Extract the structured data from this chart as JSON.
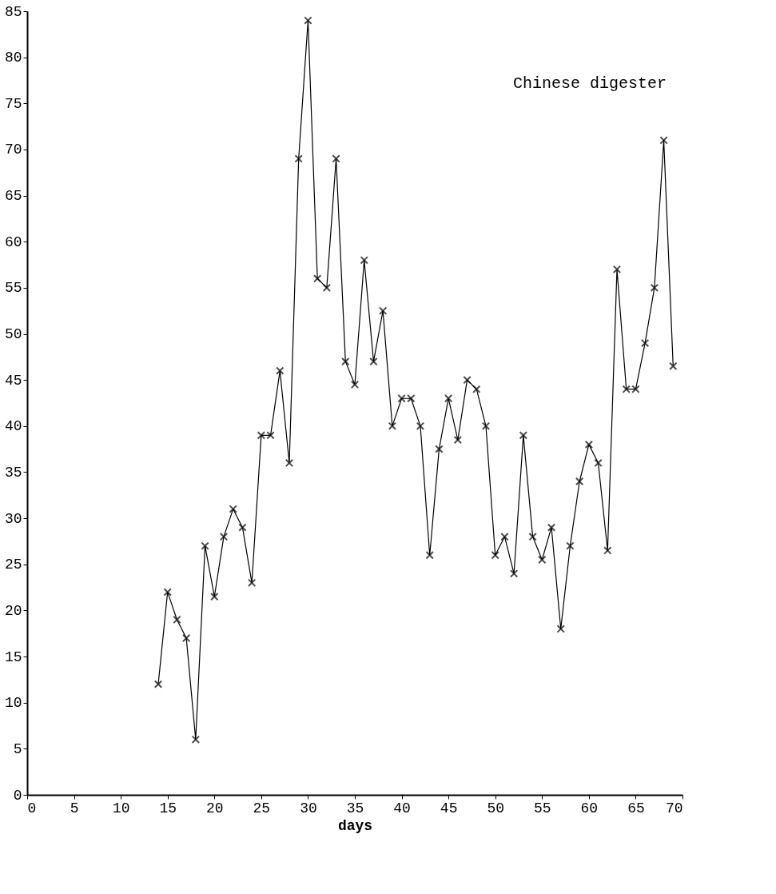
{
  "chart_data": {
    "type": "line",
    "xlabel": "days",
    "annotations": [
      "Chinese digester"
    ],
    "x": [
      14,
      15,
      16,
      17,
      18,
      19,
      20,
      21,
      22,
      23,
      24,
      25,
      26,
      27,
      28,
      29,
      30,
      31,
      32,
      33,
      34,
      35,
      36,
      37,
      38,
      39,
      40,
      41,
      42,
      43,
      44,
      45,
      46,
      47,
      48,
      49,
      50,
      51,
      52,
      53,
      54,
      55,
      56,
      57,
      58,
      59,
      60,
      61,
      62,
      63,
      64,
      65,
      66,
      67,
      68,
      69
    ],
    "series": [
      {
        "color": "#000000",
        "values": [
          12,
          22,
          19,
          17,
          6,
          27,
          21.5,
          28,
          31,
          29,
          23,
          39,
          39,
          46,
          36,
          69,
          84,
          56,
          55,
          69,
          47,
          44.5,
          58,
          47,
          52.5,
          40,
          43,
          43,
          40,
          26,
          37.5,
          43,
          38.5,
          45,
          44,
          40,
          26,
          28,
          24,
          39,
          28,
          25.5,
          29,
          18,
          27,
          34,
          38,
          36,
          26.5,
          57,
          44,
          44,
          49,
          55,
          71,
          46.5
        ]
      }
    ],
    "xlim": [
      0,
      70
    ],
    "xticks": [
      0,
      5,
      10,
      15,
      20,
      25,
      30,
      35,
      40,
      45,
      50,
      55,
      60,
      65,
      70
    ],
    "ylim": [
      0,
      85
    ],
    "yticks": [
      0,
      5,
      10,
      15,
      20,
      25,
      30,
      35,
      40,
      45,
      50,
      55,
      60,
      65,
      70,
      75,
      80,
      85
    ],
    "grid": false,
    "marker": "cross",
    "line_style": "solid"
  }
}
